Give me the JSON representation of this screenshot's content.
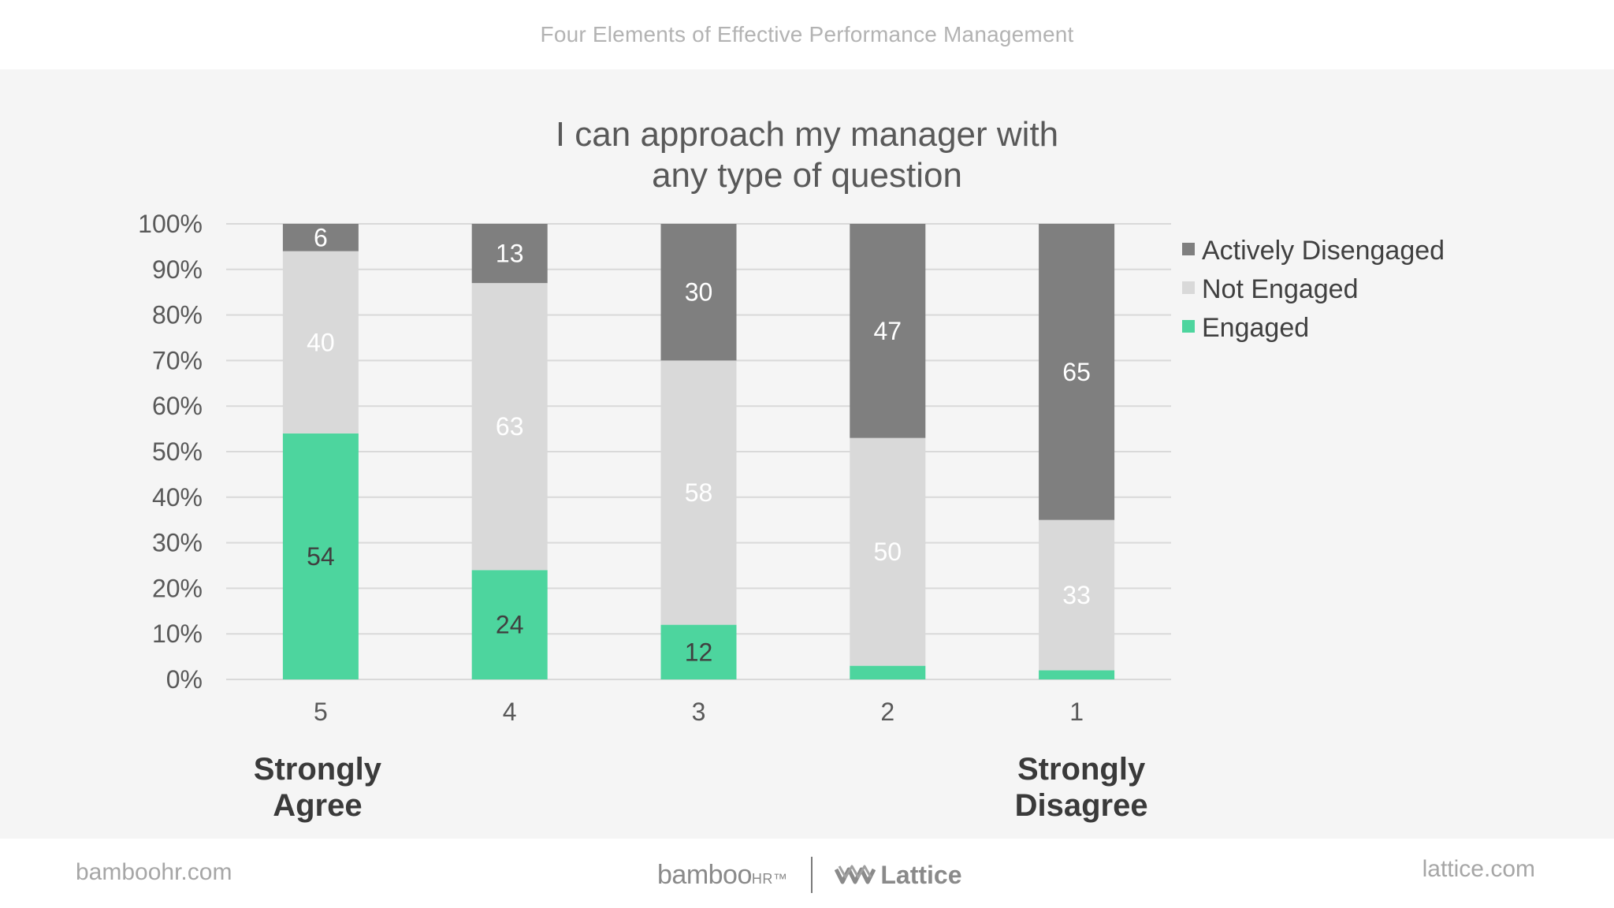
{
  "header": {
    "title": "Four Elements of Effective Performance Management"
  },
  "footer": {
    "left_url": "bamboohr.com",
    "right_url": "lattice.com",
    "bamboo_text": "bamboo",
    "bamboo_hr": "HR",
    "bamboo_tm": "™",
    "lattice_text": "Lattice"
  },
  "colors": {
    "engaged": "#4dd59e",
    "not_engaged": "#d9d9d9",
    "actively_disengaged": "#7f7f7f",
    "grid": "#d9d9d9",
    "panel_bg": "#f5f5f5"
  },
  "chart_data": {
    "type": "bar",
    "stacked": true,
    "title_lines": [
      "I can approach my manager with",
      "any type of question"
    ],
    "categories": [
      "5",
      "4",
      "3",
      "2",
      "1"
    ],
    "series": [
      {
        "name": "Engaged",
        "values": [
          54,
          24,
          12,
          3,
          2
        ],
        "labels": [
          "54",
          "24",
          "12",
          "",
          ""
        ]
      },
      {
        "name": "Not Engaged",
        "values": [
          40,
          63,
          58,
          50,
          33
        ],
        "labels": [
          "40",
          "63",
          "58",
          "50",
          "33"
        ]
      },
      {
        "name": "Actively Disengaged",
        "values": [
          6,
          13,
          30,
          47,
          65
        ],
        "labels": [
          "6",
          "13",
          "30",
          "47",
          "65"
        ]
      }
    ],
    "legend_order": [
      "Actively Disengaged",
      "Not Engaged",
      "Engaged"
    ],
    "y_ticks": [
      "0%",
      "10%",
      "20%",
      "30%",
      "40%",
      "50%",
      "60%",
      "70%",
      "80%",
      "90%",
      "100%"
    ],
    "ylim": [
      0,
      100
    ],
    "grid": true,
    "legend_position": "right",
    "anchor_left": [
      "Strongly",
      "Agree"
    ],
    "anchor_right": [
      "Strongly",
      "Disagree"
    ]
  }
}
